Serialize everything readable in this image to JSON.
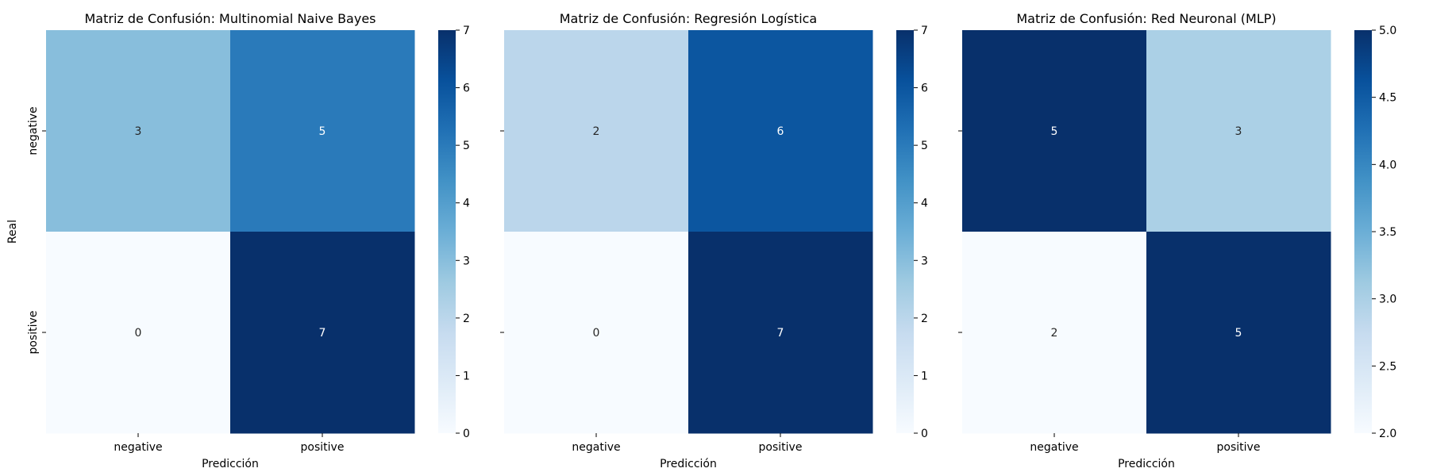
{
  "chart_data": [
    {
      "type": "heatmap",
      "title": "Matriz de Confusión: Multinomial Naive Bayes",
      "xlabel": "Predicción",
      "ylabel": "Real",
      "x_categories": [
        "negative",
        "positive"
      ],
      "y_categories": [
        "negative",
        "positive"
      ],
      "y_ticklabels_visible": true,
      "values": [
        [
          3,
          5
        ],
        [
          0,
          7
        ]
      ],
      "colormap": "Blues",
      "color_range": [
        0,
        7
      ],
      "colorbar_ticks": [
        "0",
        "1",
        "2",
        "3",
        "4",
        "5",
        "6",
        "7"
      ]
    },
    {
      "type": "heatmap",
      "title": "Matriz de Confusión: Regresión Logística",
      "xlabel": "Predicción",
      "ylabel": "",
      "x_categories": [
        "negative",
        "positive"
      ],
      "y_categories": [
        "negative",
        "positive"
      ],
      "y_ticklabels_visible": false,
      "values": [
        [
          2,
          6
        ],
        [
          0,
          7
        ]
      ],
      "colormap": "Blues",
      "color_range": [
        0,
        7
      ],
      "colorbar_ticks": [
        "0",
        "1",
        "2",
        "3",
        "4",
        "5",
        "6",
        "7"
      ]
    },
    {
      "type": "heatmap",
      "title": "Matriz de Confusión: Red Neuronal (MLP)",
      "xlabel": "Predicción",
      "ylabel": "",
      "x_categories": [
        "negative",
        "positive"
      ],
      "y_categories": [
        "negative",
        "positive"
      ],
      "y_ticklabels_visible": false,
      "values": [
        [
          5,
          3
        ],
        [
          2,
          5
        ]
      ],
      "colormap": "Blues",
      "color_range": [
        2,
        5
      ],
      "colorbar_ticks": [
        "2.0",
        "2.5",
        "3.0",
        "3.5",
        "4.0",
        "4.5",
        "5.0"
      ]
    }
  ]
}
